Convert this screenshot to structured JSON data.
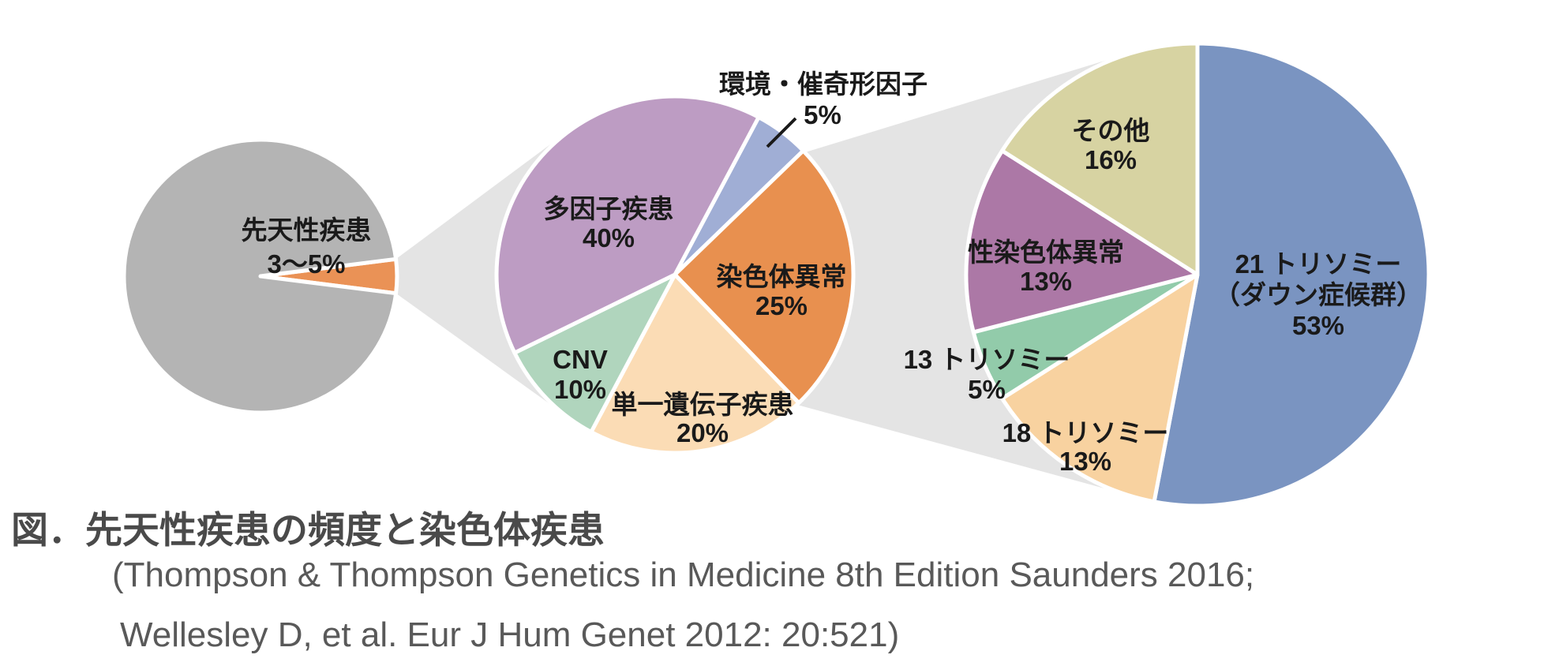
{
  "figure": {
    "kind": "linked pie charts (zoom-out diagram)",
    "unit": "%"
  },
  "palette": {
    "background": "#ffffff",
    "connector_gray": "#e4e4e4",
    "label_text": "#1a1a1a",
    "caption_title_color": "#4a4a4a",
    "caption_source_color": "#595959",
    "slice_border": "#ffffff"
  },
  "chart_data": [
    {
      "type": "pie",
      "name": "all-births",
      "slices": [
        {
          "name": "congenital-disease",
          "label": "先天性疾患",
          "value": 4,
          "value_text": "3〜5%",
          "color": "#ea9256"
        },
        {
          "name": "other-births",
          "label": "",
          "value": 96,
          "value_text": "",
          "color": "#b4b4b4"
        }
      ]
    },
    {
      "type": "pie",
      "name": "congenital-disease-causes",
      "slices": [
        {
          "name": "environmental-teratogenic-factors",
          "label": "環境・催奇形因子",
          "value": 5,
          "value_text": "5%",
          "color": "#a0aed5"
        },
        {
          "name": "chromosomal-abnormality",
          "label": "染色体異常",
          "value": 25,
          "value_text": "25%",
          "color": "#e8904f"
        },
        {
          "name": "single-gene-disease",
          "label": "単一遺伝子疾患",
          "value": 20,
          "value_text": "20%",
          "color": "#fbdcb5"
        },
        {
          "name": "cnv",
          "label": "CNV",
          "value": 10,
          "value_text": "10%",
          "color": "#b0d5bd"
        },
        {
          "name": "multifactorial-disease",
          "label": "多因子疾患",
          "value": 40,
          "value_text": "40%",
          "color": "#bd9cc3"
        }
      ]
    },
    {
      "type": "pie",
      "name": "chromosomal-abnormality-breakdown",
      "slices": [
        {
          "name": "trisomy-21-down-syndrome",
          "label": "21 トリソミー",
          "label2": "（ダウン症候群）",
          "value": 53,
          "value_text": "53%",
          "color": "#7a94c1"
        },
        {
          "name": "trisomy-18",
          "label": "18 トリソミー",
          "value": 13,
          "value_text": "13%",
          "color": "#f8d2a0"
        },
        {
          "name": "trisomy-13",
          "label": "13 トリソミー",
          "value": 5,
          "value_text": "5%",
          "color": "#92cbaa"
        },
        {
          "name": "sex-chromosome-abnormality",
          "label": "性染色体異常",
          "value": 13,
          "value_text": "13%",
          "color": "#ac78a6"
        },
        {
          "name": "other",
          "label": "その他",
          "value": 16,
          "value_text": "16%",
          "color": "#d7d3a2"
        }
      ]
    }
  ],
  "caption": {
    "title": "図．先天性疾患の頻度と染色体疾患",
    "source_line1": "(Thompson & Thompson Genetics in Medicine 8th Edition Saunders 2016;",
    "source_line2": "Wellesley D, et al. Eur J Hum Genet 2012: 20:521)"
  }
}
